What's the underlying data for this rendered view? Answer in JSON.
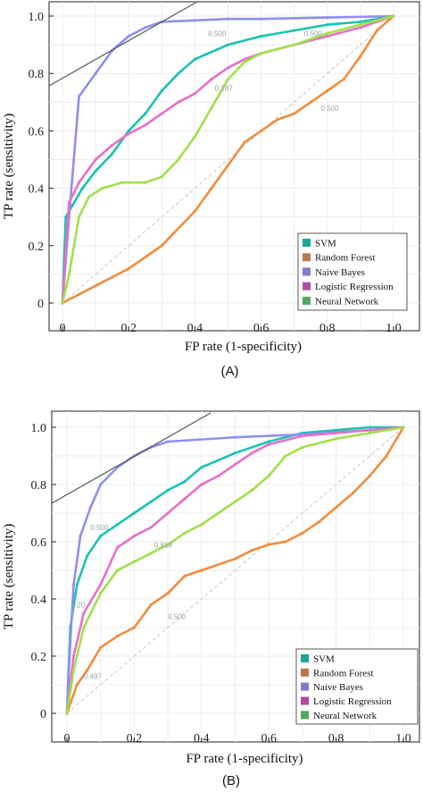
{
  "chart_data": [
    {
      "type": "line",
      "panel_label": "(A)",
      "xlabel": "FP rate (1-specificity)",
      "ylabel": "TP rate (sensitivity)",
      "xlim": [
        0,
        1
      ],
      "ylim": [
        0,
        1
      ],
      "x_ticks": [
        "0",
        "0.2",
        "0.4",
        "0.6",
        "0.8",
        "1.0"
      ],
      "y_ticks": [
        "0",
        "0.2",
        "0.4",
        "0.6",
        "0.8",
        "1.0"
      ],
      "grid": true,
      "legend_position": "bottom-right",
      "diagonal_reference": true,
      "series": [
        {
          "name": "SVM",
          "color": "#19c3b0",
          "x": [
            0,
            0.01,
            0.03,
            0.06,
            0.1,
            0.15,
            0.2,
            0.25,
            0.3,
            0.35,
            0.4,
            0.5,
            0.6,
            0.7,
            0.8,
            0.9,
            1.0
          ],
          "y": [
            0,
            0.3,
            0.34,
            0.4,
            0.46,
            0.52,
            0.6,
            0.66,
            0.74,
            0.8,
            0.85,
            0.9,
            0.93,
            0.95,
            0.97,
            0.98,
            1.0
          ]
        },
        {
          "name": "Random Forest",
          "color": "#f28c3c",
          "x": [
            0,
            0.05,
            0.1,
            0.15,
            0.2,
            0.3,
            0.4,
            0.45,
            0.5,
            0.55,
            0.6,
            0.65,
            0.7,
            0.75,
            0.8,
            0.85,
            0.9,
            0.95,
            1.0
          ],
          "y": [
            0,
            0.03,
            0.06,
            0.09,
            0.12,
            0.2,
            0.32,
            0.4,
            0.48,
            0.56,
            0.6,
            0.64,
            0.66,
            0.7,
            0.74,
            0.78,
            0.86,
            0.95,
            1.0
          ]
        },
        {
          "name": "Naive Bayes",
          "color": "#8f8ff0",
          "x": [
            0,
            0.02,
            0.05,
            0.1,
            0.15,
            0.2,
            0.25,
            0.3,
            0.4,
            0.5,
            0.6,
            0.8,
            1.0
          ],
          "y": [
            0,
            0.3,
            0.72,
            0.8,
            0.88,
            0.93,
            0.96,
            0.98,
            0.985,
            0.99,
            0.99,
            0.995,
            1.0
          ]
        },
        {
          "name": "Logistic Regression",
          "color": "#e86fc8",
          "x": [
            0,
            0.02,
            0.05,
            0.1,
            0.15,
            0.2,
            0.25,
            0.3,
            0.35,
            0.4,
            0.45,
            0.5,
            0.55,
            0.6,
            0.7,
            0.8,
            0.9,
            1.0
          ],
          "y": [
            0,
            0.35,
            0.42,
            0.5,
            0.55,
            0.59,
            0.62,
            0.66,
            0.7,
            0.73,
            0.78,
            0.82,
            0.85,
            0.87,
            0.9,
            0.93,
            0.96,
            1.0
          ]
        },
        {
          "name": "Neural Network",
          "color": "#a0e04a",
          "x": [
            0,
            0.02,
            0.05,
            0.08,
            0.12,
            0.18,
            0.25,
            0.3,
            0.35,
            0.4,
            0.45,
            0.5,
            0.55,
            0.6,
            0.7,
            0.8,
            0.9,
            1.0
          ],
          "y": [
            0,
            0.1,
            0.3,
            0.37,
            0.4,
            0.42,
            0.42,
            0.44,
            0.5,
            0.58,
            0.68,
            0.78,
            0.84,
            0.87,
            0.9,
            0.94,
            0.97,
            1.0
          ]
        }
      ],
      "annotations": [
        {
          "text": "0.500",
          "x": 0.44,
          "y": 0.93
        },
        {
          "text": "0.187",
          "x": 0.46,
          "y": 0.74
        },
        {
          "text": "0.500",
          "x": 0.78,
          "y": 0.67
        },
        {
          "text": "0.500",
          "x": 0.73,
          "y": 0.93
        }
      ]
    },
    {
      "type": "line",
      "panel_label": "(B)",
      "xlabel": "FP rate (1-specificity)",
      "ylabel": "TP rate (sensitivity)",
      "xlim": [
        0,
        1
      ],
      "ylim": [
        0,
        1
      ],
      "x_ticks": [
        "0",
        "0.2",
        "0.4",
        "0.6",
        "0.8",
        "1.0"
      ],
      "y_ticks": [
        "0",
        "0.2",
        "0.4",
        "0.6",
        "0.8",
        "1.0"
      ],
      "grid": true,
      "legend_position": "bottom-right",
      "diagonal_reference": true,
      "series": [
        {
          "name": "SVM",
          "color": "#19c3b0",
          "x": [
            0,
            0.01,
            0.03,
            0.06,
            0.1,
            0.15,
            0.2,
            0.25,
            0.3,
            0.35,
            0.4,
            0.5,
            0.6,
            0.7,
            0.8,
            0.9,
            1.0
          ],
          "y": [
            0,
            0.3,
            0.45,
            0.55,
            0.62,
            0.66,
            0.7,
            0.74,
            0.78,
            0.81,
            0.86,
            0.91,
            0.95,
            0.98,
            0.99,
            1.0,
            1.0
          ]
        },
        {
          "name": "Random Forest",
          "color": "#f28c3c",
          "x": [
            0,
            0.03,
            0.06,
            0.1,
            0.15,
            0.2,
            0.25,
            0.3,
            0.35,
            0.4,
            0.5,
            0.55,
            0.6,
            0.65,
            0.7,
            0.75,
            0.8,
            0.85,
            0.9,
            0.95,
            1.0
          ],
          "y": [
            0,
            0.1,
            0.15,
            0.23,
            0.27,
            0.3,
            0.38,
            0.42,
            0.48,
            0.5,
            0.54,
            0.57,
            0.59,
            0.6,
            0.63,
            0.67,
            0.72,
            0.77,
            0.83,
            0.9,
            1.0
          ]
        },
        {
          "name": "Naive Bayes",
          "color": "#8f8ff0",
          "x": [
            0,
            0.01,
            0.02,
            0.04,
            0.07,
            0.1,
            0.15,
            0.2,
            0.25,
            0.3,
            0.5,
            0.7,
            0.9,
            1.0
          ],
          "y": [
            0,
            0.25,
            0.45,
            0.62,
            0.72,
            0.8,
            0.86,
            0.9,
            0.93,
            0.95,
            0.965,
            0.975,
            0.99,
            1.0
          ]
        },
        {
          "name": "Logistic Regression",
          "color": "#e86fc8",
          "x": [
            0,
            0.02,
            0.05,
            0.1,
            0.15,
            0.2,
            0.25,
            0.3,
            0.35,
            0.4,
            0.45,
            0.5,
            0.55,
            0.6,
            0.7,
            0.8,
            0.9,
            1.0
          ],
          "y": [
            0,
            0.2,
            0.35,
            0.45,
            0.58,
            0.62,
            0.65,
            0.7,
            0.75,
            0.8,
            0.83,
            0.87,
            0.91,
            0.94,
            0.97,
            0.98,
            0.99,
            1.0
          ]
        },
        {
          "name": "Neural Network",
          "color": "#a0e04a",
          "x": [
            0,
            0.02,
            0.05,
            0.1,
            0.15,
            0.2,
            0.25,
            0.3,
            0.35,
            0.4,
            0.45,
            0.5,
            0.55,
            0.6,
            0.65,
            0.7,
            0.8,
            0.9,
            1.0
          ],
          "y": [
            0,
            0.15,
            0.3,
            0.42,
            0.5,
            0.53,
            0.56,
            0.59,
            0.63,
            0.66,
            0.7,
            0.74,
            0.78,
            0.83,
            0.9,
            0.93,
            0.96,
            0.98,
            1.0
          ]
        }
      ],
      "annotations": [
        {
          "text": "0.500",
          "x": 0.07,
          "y": 0.64
        },
        {
          "text": "0.818",
          "x": 0.26,
          "y": 0.58
        },
        {
          "text": "0.500",
          "x": 0.3,
          "y": 0.33
        },
        {
          "text": "0.497",
          "x": 0.05,
          "y": 0.12
        },
        {
          "text": "20",
          "x": 0.03,
          "y": 0.37
        }
      ]
    }
  ]
}
